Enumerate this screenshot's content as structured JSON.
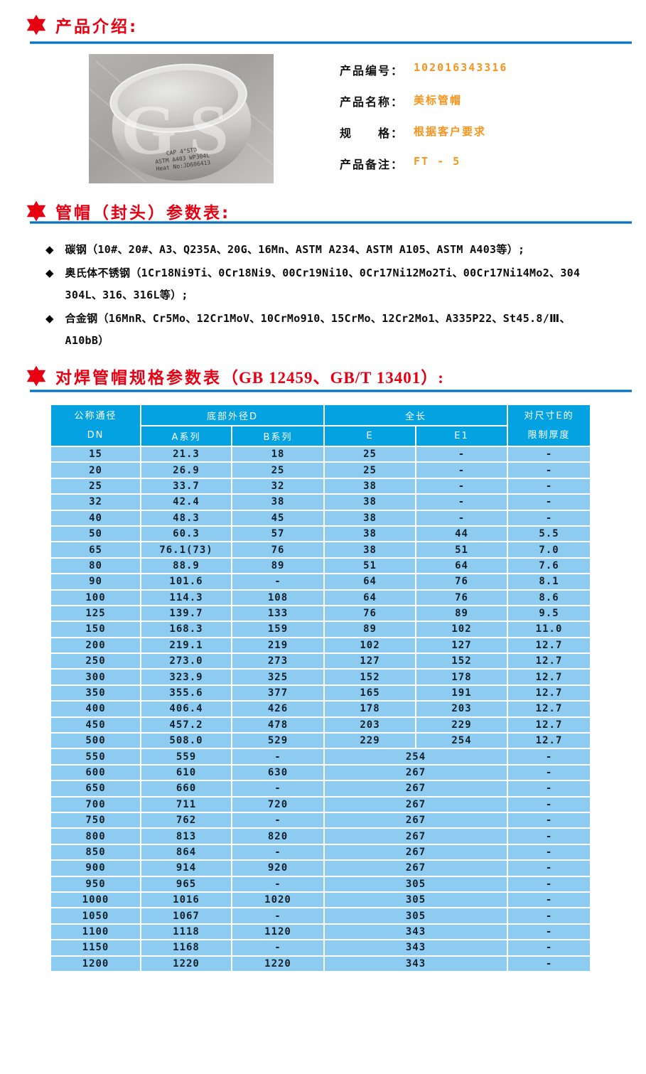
{
  "colors": {
    "accent_red": "#e60012",
    "underline_blue": "#0d6fbe",
    "table_header_blue": "#04a2e0",
    "table_cell_blue": "#8dcbf0",
    "value_orange": "#f7941d"
  },
  "sections": {
    "intro": {
      "title": "产品介绍:",
      "photo": {
        "watermark": "GS",
        "cap_text_line1": "CAP 4\"STD",
        "cap_text_line2": "ASTM A403 WP304L",
        "cap_text_line3": "Heat No:JD606413"
      },
      "fields": [
        {
          "label": "产品编号：",
          "value": "102016343316"
        },
        {
          "label": "产品名称：",
          "value": "美标管帽"
        },
        {
          "label": "规　　格：",
          "value": "根据客户要求"
        },
        {
          "label": "产品备注：",
          "value": "FT - 5"
        }
      ]
    },
    "materials": {
      "title": "管帽（封头）参数表:",
      "bullets": [
        "碳钢（10#、20#、A3、Q235A、20G、16Mn、ASTM A234、ASTM A105、ASTM A403等）;",
        "奥氏体不锈钢（1Cr18Ni9Ti、0Cr18Ni9、00Cr19Ni10、0Cr17Ni12Mo2Ti、00Cr17Ni14Mo2、304\n304L、316、316L等）;",
        "合金钢（16MnR、Cr5Mo、12Cr1MoV、10CrMo910、15CrMo、12Cr2Mo1、A335P22、St45.8/Ⅲ、\nA10bB）"
      ]
    },
    "spec_table": {
      "title_main": "对焊管帽规格参数表",
      "title_ref": "（GB 12459、GB/T 13401）:",
      "header": {
        "dn": "公称通径\nDN",
        "d_group": "底部外径D",
        "a": "A系列",
        "b": "B系列",
        "len_group": "全长",
        "e": "E",
        "e1": "E1",
        "thickness": "对尺寸E的\n限制厚度"
      },
      "rows": [
        {
          "dn": "15",
          "a": "21.3",
          "b": "18",
          "e": "25",
          "e1": "-",
          "t": "-",
          "e_span": false
        },
        {
          "dn": "20",
          "a": "26.9",
          "b": "25",
          "e": "25",
          "e1": "-",
          "t": "-",
          "e_span": false
        },
        {
          "dn": "25",
          "a": "33.7",
          "b": "32",
          "e": "38",
          "e1": "-",
          "t": "-",
          "e_span": false
        },
        {
          "dn": "32",
          "a": "42.4",
          "b": "38",
          "e": "38",
          "e1": "-",
          "t": "-",
          "e_span": false
        },
        {
          "dn": "40",
          "a": "48.3",
          "b": "45",
          "e": "38",
          "e1": "-",
          "t": "-",
          "e_span": false
        },
        {
          "dn": "50",
          "a": "60.3",
          "b": "57",
          "e": "38",
          "e1": "44",
          "t": "5.5",
          "e_span": false
        },
        {
          "dn": "65",
          "a": "76.1(73)",
          "b": "76",
          "e": "38",
          "e1": "51",
          "t": "7.0",
          "e_span": false
        },
        {
          "dn": "80",
          "a": "88.9",
          "b": "89",
          "e": "51",
          "e1": "64",
          "t": "7.6",
          "e_span": false
        },
        {
          "dn": "90",
          "a": "101.6",
          "b": "-",
          "e": "64",
          "e1": "76",
          "t": "8.1",
          "e_span": false
        },
        {
          "dn": "100",
          "a": "114.3",
          "b": "108",
          "e": "64",
          "e1": "76",
          "t": "8.6",
          "e_span": false
        },
        {
          "dn": "125",
          "a": "139.7",
          "b": "133",
          "e": "76",
          "e1": "89",
          "t": "9.5",
          "e_span": false
        },
        {
          "dn": "150",
          "a": "168.3",
          "b": "159",
          "e": "89",
          "e1": "102",
          "t": "11.0",
          "e_span": false
        },
        {
          "dn": "200",
          "a": "219.1",
          "b": "219",
          "e": "102",
          "e1": "127",
          "t": "12.7",
          "e_span": false
        },
        {
          "dn": "250",
          "a": "273.0",
          "b": "273",
          "e": "127",
          "e1": "152",
          "t": "12.7",
          "e_span": false
        },
        {
          "dn": "300",
          "a": "323.9",
          "b": "325",
          "e": "152",
          "e1": "178",
          "t": "12.7",
          "e_span": false
        },
        {
          "dn": "350",
          "a": "355.6",
          "b": "377",
          "e": "165",
          "e1": "191",
          "t": "12.7",
          "e_span": false
        },
        {
          "dn": "400",
          "a": "406.4",
          "b": "426",
          "e": "178",
          "e1": "203",
          "t": "12.7",
          "e_span": false
        },
        {
          "dn": "450",
          "a": "457.2",
          "b": "478",
          "e": "203",
          "e1": "229",
          "t": "12.7",
          "e_span": false
        },
        {
          "dn": "500",
          "a": "508.0",
          "b": "529",
          "e": "229",
          "e1": "254",
          "t": "12.7",
          "e_span": false
        },
        {
          "dn": "550",
          "a": "559",
          "b": "-",
          "e": "254",
          "e1": null,
          "t": "-",
          "e_span": true
        },
        {
          "dn": "600",
          "a": "610",
          "b": "630",
          "e": "267",
          "e1": null,
          "t": "-",
          "e_span": true
        },
        {
          "dn": "650",
          "a": "660",
          "b": "-",
          "e": "267",
          "e1": null,
          "t": "-",
          "e_span": true
        },
        {
          "dn": "700",
          "a": "711",
          "b": "720",
          "e": "267",
          "e1": null,
          "t": "-",
          "e_span": true
        },
        {
          "dn": "750",
          "a": "762",
          "b": "-",
          "e": "267",
          "e1": null,
          "t": "-",
          "e_span": true
        },
        {
          "dn": "800",
          "a": "813",
          "b": "820",
          "e": "267",
          "e1": null,
          "t": "-",
          "e_span": true
        },
        {
          "dn": "850",
          "a": "864",
          "b": "-",
          "e": "267",
          "e1": null,
          "t": "-",
          "e_span": true
        },
        {
          "dn": "900",
          "a": "914",
          "b": "920",
          "e": "267",
          "e1": null,
          "t": "-",
          "e_span": true
        },
        {
          "dn": "950",
          "a": "965",
          "b": "-",
          "e": "305",
          "e1": null,
          "t": "-",
          "e_span": true
        },
        {
          "dn": "1000",
          "a": "1016",
          "b": "1020",
          "e": "305",
          "e1": null,
          "t": "-",
          "e_span": true
        },
        {
          "dn": "1050",
          "a": "1067",
          "b": "-",
          "e": "305",
          "e1": null,
          "t": "-",
          "e_span": true
        },
        {
          "dn": "1100",
          "a": "1118",
          "b": "1120",
          "e": "343",
          "e1": null,
          "t": "-",
          "e_span": true
        },
        {
          "dn": "1150",
          "a": "1168",
          "b": "-",
          "e": "343",
          "e1": null,
          "t": "-",
          "e_span": true
        },
        {
          "dn": "1200",
          "a": "1220",
          "b": "1220",
          "e": "343",
          "e1": null,
          "t": "-",
          "e_span": true
        }
      ]
    }
  }
}
